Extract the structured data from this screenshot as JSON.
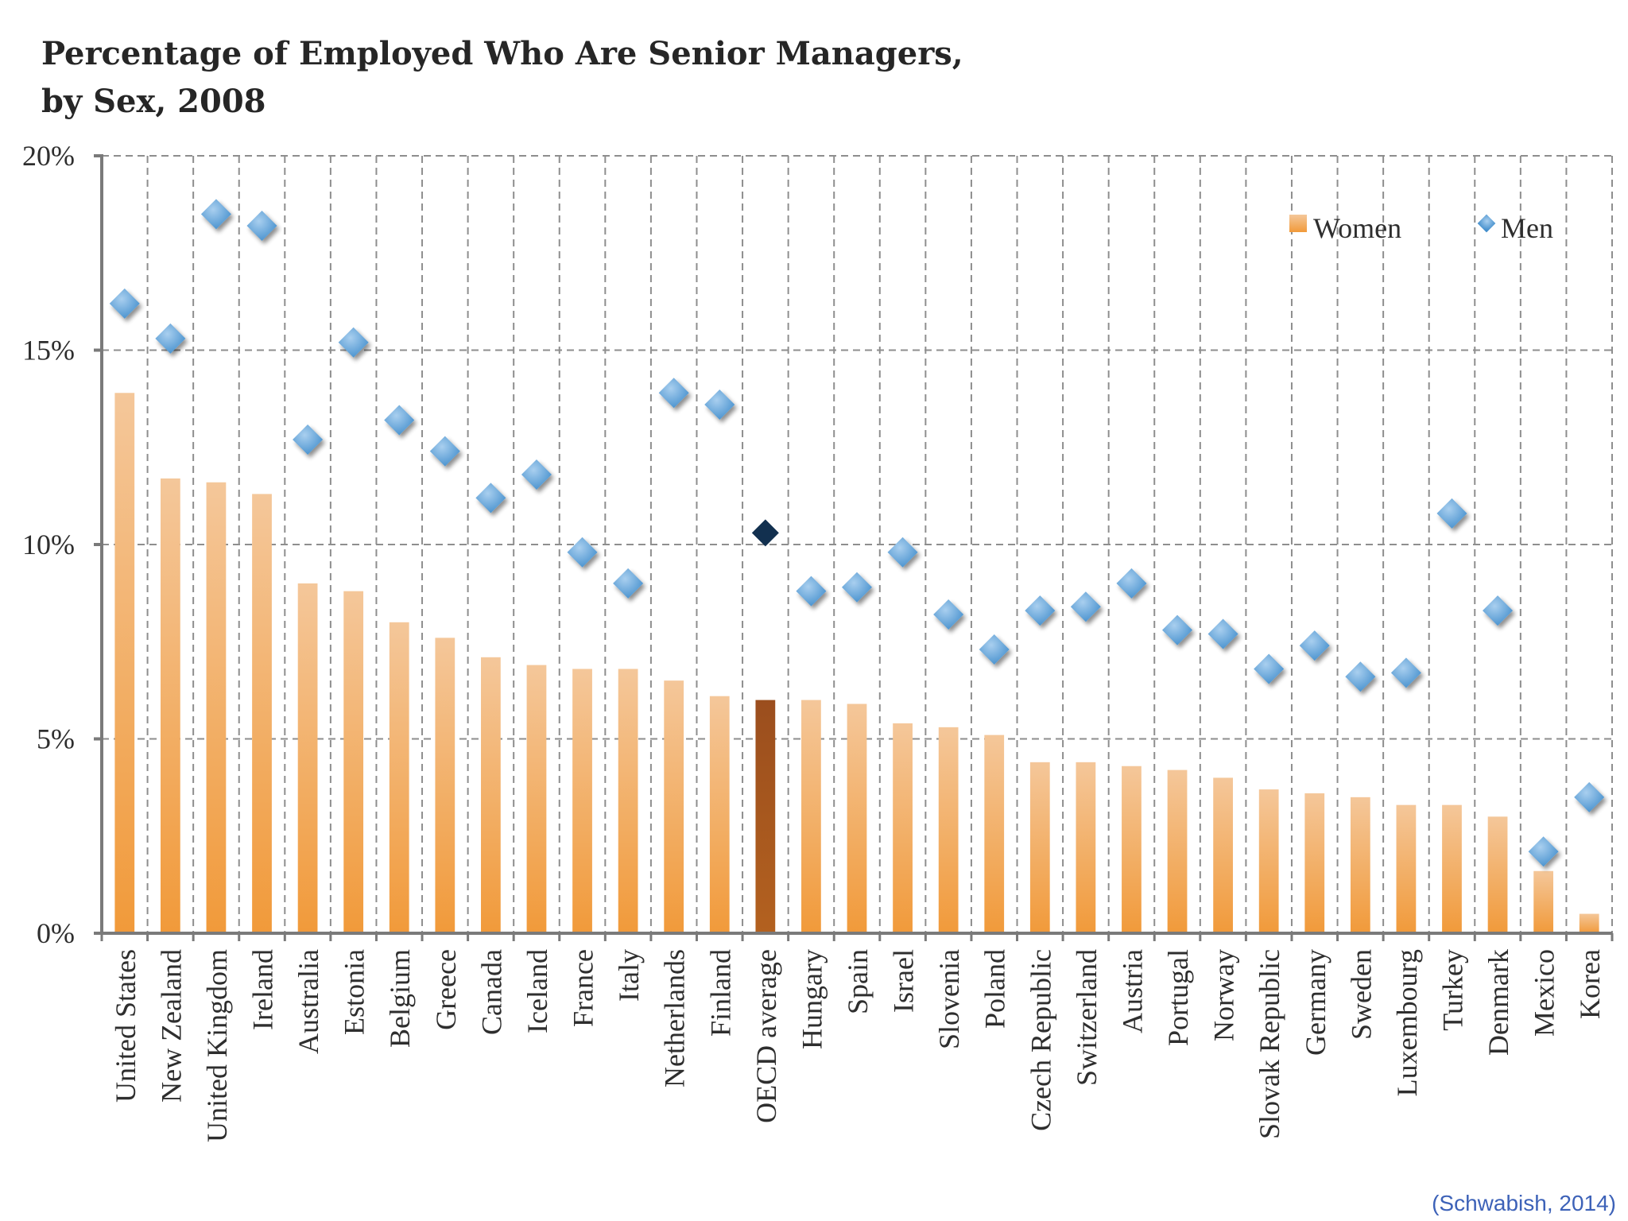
{
  "source_note": "(Schwabish, 2014)",
  "colors": {
    "women_top": "#f4c79a",
    "women_bottom": "#f19a3a",
    "highlight_top": "#9b4e1e",
    "highlight_bottom": "#b3611f",
    "men_light": "#a9cfef",
    "men_dark": "#3f8ccb",
    "men_highlight": "#12304f",
    "grid": "#8e8e8e",
    "axis": "#7a7a7a"
  },
  "chart_data": {
    "type": "bar",
    "title": "Percentage of Employed Who Are Senior Managers,",
    "subtitle": "by Sex, 2008",
    "xlabel": "",
    "ylabel": "",
    "ylim": [
      0,
      20
    ],
    "y_ticks": [
      {
        "value": 0,
        "label": "0%"
      },
      {
        "value": 5,
        "label": "5%"
      },
      {
        "value": 10,
        "label": "10%"
      },
      {
        "value": 15,
        "label": "15%"
      },
      {
        "value": 20,
        "label": "20%"
      }
    ],
    "grid": true,
    "legend_position": "top-right",
    "highlight_category": "OECD average",
    "categories": [
      "United States",
      "New Zealand",
      "United Kingdom",
      "Ireland",
      "Australia",
      "Estonia",
      "Belgium",
      "Greece",
      "Canada",
      "Iceland",
      "France",
      "Italy",
      "Netherlands",
      "Finland",
      "OECD average",
      "Hungary",
      "Spain",
      "Israel",
      "Slovenia",
      "Poland",
      "Czech Republic",
      "Switzerland",
      "Austria",
      "Portugal",
      "Norway",
      "Slovak Republic",
      "Germany",
      "Sweden",
      "Luxembourg",
      "Turkey",
      "Denmark",
      "Mexico",
      "Korea"
    ],
    "series": [
      {
        "name": "Women",
        "kind": "bar",
        "values": [
          13.9,
          11.7,
          11.6,
          11.3,
          9.0,
          8.8,
          8.0,
          7.6,
          7.1,
          6.9,
          6.8,
          6.8,
          6.5,
          6.1,
          6.0,
          6.0,
          5.9,
          5.4,
          5.3,
          5.1,
          4.4,
          4.4,
          4.3,
          4.2,
          4.0,
          3.7,
          3.6,
          3.5,
          3.3,
          3.3,
          3.0,
          1.6,
          0.5
        ]
      },
      {
        "name": "Men",
        "kind": "marker",
        "values": [
          16.2,
          15.3,
          18.5,
          18.2,
          12.7,
          15.2,
          13.2,
          12.4,
          11.2,
          11.8,
          9.8,
          9.0,
          13.9,
          13.6,
          10.3,
          8.8,
          8.9,
          9.8,
          8.2,
          7.3,
          8.3,
          8.4,
          9.0,
          7.8,
          7.7,
          6.8,
          7.4,
          6.6,
          6.7,
          10.8,
          8.3,
          2.1,
          3.5
        ]
      }
    ]
  }
}
